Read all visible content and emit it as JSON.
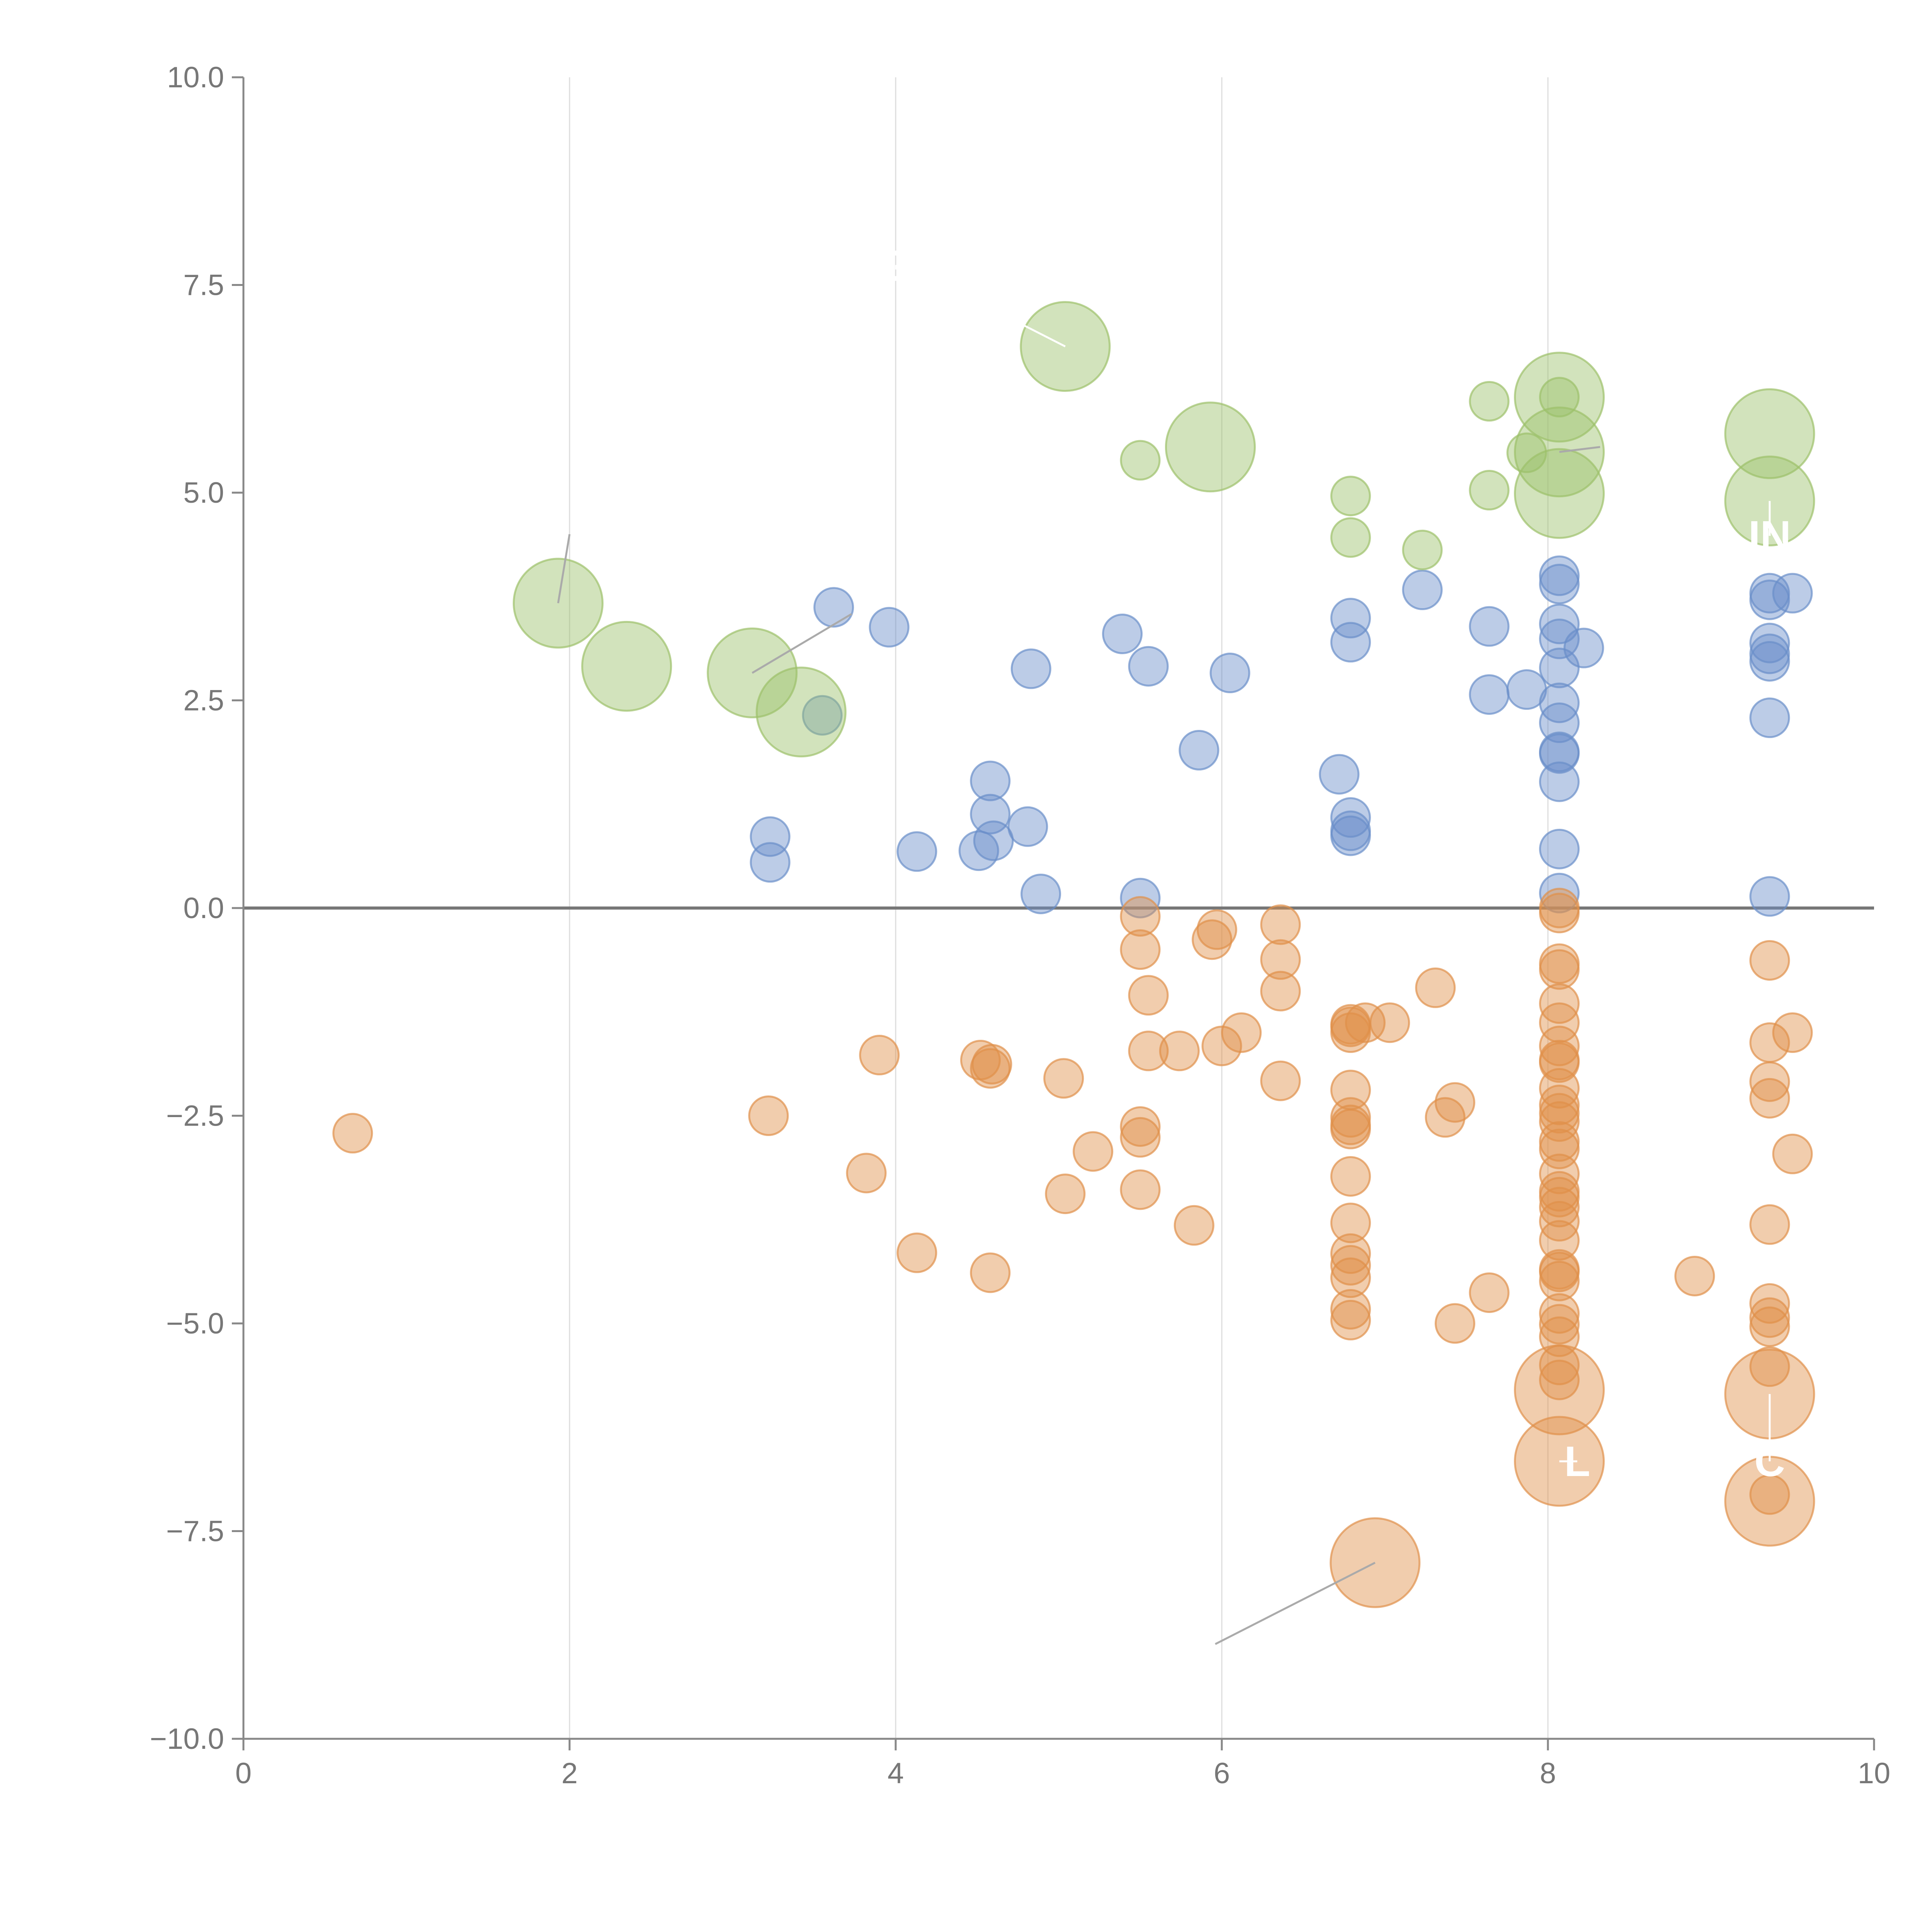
{
  "chart_data": {
    "type": "scatter",
    "title": "",
    "xlabel": "",
    "ylabel": "",
    "xlim": [
      0,
      10
    ],
    "ylim": [
      -10,
      10
    ],
    "x_ticks": [
      0,
      2,
      4,
      6,
      8,
      10
    ],
    "x_tick_labels": [
      "0",
      "2",
      "4",
      "6",
      "8",
      "10"
    ],
    "y_ticks": [
      10,
      7.5,
      5,
      2.5,
      0,
      -2.5,
      -5,
      -7.5,
      -10
    ],
    "y_tick_labels": [
      "10.0",
      "7.5",
      "5.0",
      "2.5",
      "0.0",
      "−2.5",
      "−5.0",
      "−7.5",
      "−10.0"
    ],
    "grid": "vertical",
    "reference_line_y": 0,
    "legend": "none",
    "colors": {
      "blue": "#6a8fc9",
      "orange": "#e0904a",
      "green": "#9cc06a",
      "axis": "#888888",
      "grid": "#dddddd",
      "zero_line": "#777777",
      "leader": "#aaaaaa"
    },
    "series": [
      {
        "name": "blue",
        "color": "#6a8fc9",
        "size": "small",
        "points": [
          [
            3.62,
            3.62
          ],
          [
            3.96,
            3.38
          ],
          [
            4.83,
            2.88
          ],
          [
            5.39,
            3.3
          ],
          [
            5.55,
            2.91
          ],
          [
            5.86,
            1.9
          ],
          [
            6.05,
            2.83
          ],
          [
            3.55,
            2.32
          ],
          [
            3.23,
            0.86
          ],
          [
            3.23,
            0.55
          ],
          [
            4.13,
            0.68
          ],
          [
            4.51,
            0.69
          ],
          [
            4.58,
            1.53
          ],
          [
            4.58,
            1.13
          ],
          [
            4.6,
            0.81
          ],
          [
            4.81,
            0.98
          ],
          [
            4.89,
            0.17
          ],
          [
            5.5,
            0.12
          ],
          [
            6.72,
            1.61
          ],
          [
            6.79,
            1.09
          ],
          [
            6.79,
            0.87
          ],
          [
            6.79,
            0.93
          ],
          [
            6.79,
            3.49
          ],
          [
            6.79,
            3.2
          ],
          [
            7.23,
            3.83
          ],
          [
            7.64,
            3.39
          ],
          [
            7.64,
            2.57
          ],
          [
            7.87,
            2.63
          ],
          [
            8.07,
            4.0
          ],
          [
            8.07,
            3.9
          ],
          [
            8.07,
            3.42
          ],
          [
            8.07,
            3.24
          ],
          [
            8.07,
            2.89
          ],
          [
            8.07,
            2.47
          ],
          [
            8.07,
            2.23
          ],
          [
            8.07,
            1.88
          ],
          [
            8.07,
            1.86
          ],
          [
            8.07,
            1.52
          ],
          [
            8.07,
            0.71
          ],
          [
            8.07,
            0.18
          ],
          [
            8.22,
            3.13
          ],
          [
            9.36,
            3.79
          ],
          [
            9.36,
            3.71
          ],
          [
            9.5,
            3.79
          ],
          [
            9.36,
            3.19
          ],
          [
            9.36,
            3.06
          ],
          [
            9.36,
            2.97
          ],
          [
            9.36,
            2.29
          ],
          [
            9.36,
            0.14
          ]
        ]
      },
      {
        "name": "orange",
        "color": "#e0904a",
        "size": "small",
        "points": [
          [
            0.67,
            -2.71
          ],
          [
            3.22,
            -2.5
          ],
          [
            3.82,
            -3.19
          ],
          [
            3.9,
            -1.77
          ],
          [
            4.13,
            -4.15
          ],
          [
            4.52,
            -1.83
          ],
          [
            4.58,
            -1.93
          ],
          [
            4.59,
            -1.88
          ],
          [
            4.58,
            -4.39
          ],
          [
            5.03,
            -2.05
          ],
          [
            5.04,
            -3.44
          ],
          [
            5.21,
            -2.93
          ],
          [
            5.5,
            -0.1
          ],
          [
            5.5,
            -0.5
          ],
          [
            5.55,
            -1.05
          ],
          [
            5.55,
            -1.72
          ],
          [
            5.5,
            -2.63
          ],
          [
            5.5,
            -2.76
          ],
          [
            5.5,
            -3.39
          ],
          [
            5.74,
            -1.72
          ],
          [
            5.83,
            -3.82
          ],
          [
            5.94,
            -0.38
          ],
          [
            5.97,
            -0.26
          ],
          [
            6.0,
            -1.66
          ],
          [
            6.12,
            -1.5
          ],
          [
            6.36,
            -0.2
          ],
          [
            6.36,
            -0.62
          ],
          [
            6.36,
            -1.0
          ],
          [
            6.36,
            -2.08
          ],
          [
            6.79,
            -1.4
          ],
          [
            6.79,
            -1.5
          ],
          [
            6.79,
            -1.43
          ],
          [
            6.88,
            -1.38
          ],
          [
            7.03,
            -1.38
          ],
          [
            6.79,
            -2.19
          ],
          [
            6.79,
            -2.52
          ],
          [
            6.79,
            -2.66
          ],
          [
            6.79,
            -2.61
          ],
          [
            6.79,
            -3.23
          ],
          [
            6.79,
            -3.79
          ],
          [
            6.79,
            -4.16
          ],
          [
            6.79,
            -4.3
          ],
          [
            6.79,
            -4.45
          ],
          [
            6.79,
            -4.83
          ],
          [
            6.79,
            -4.96
          ],
          [
            7.31,
            -0.96
          ],
          [
            7.37,
            -2.52
          ],
          [
            7.43,
            -2.34
          ],
          [
            7.43,
            -5.0
          ],
          [
            7.64,
            -4.63
          ],
          [
            8.07,
            -0.06
          ],
          [
            8.07,
            0.0
          ],
          [
            8.07,
            -0.67
          ],
          [
            8.07,
            -0.74
          ],
          [
            8.07,
            -1.15
          ],
          [
            8.07,
            -1.38
          ],
          [
            8.07,
            -1.66
          ],
          [
            8.07,
            -1.86
          ],
          [
            8.07,
            -1.83
          ],
          [
            8.07,
            -2.17
          ],
          [
            8.07,
            -2.37
          ],
          [
            8.07,
            -2.47
          ],
          [
            8.07,
            -2.57
          ],
          [
            8.07,
            -2.81
          ],
          [
            8.07,
            -2.9
          ],
          [
            8.07,
            -3.2
          ],
          [
            8.07,
            -3.41
          ],
          [
            8.07,
            -3.48
          ],
          [
            8.07,
            -3.6
          ],
          [
            8.07,
            -3.77
          ],
          [
            8.07,
            -4.0
          ],
          [
            8.07,
            -4.35
          ],
          [
            8.07,
            -4.38
          ],
          [
            8.07,
            -4.49
          ],
          [
            8.07,
            -4.88
          ],
          [
            8.07,
            -5.01
          ],
          [
            8.07,
            -5.16
          ],
          [
            8.07,
            -5.5
          ],
          [
            8.07,
            -5.68
          ],
          [
            8.9,
            -4.43
          ],
          [
            9.36,
            -0.63
          ],
          [
            9.36,
            -1.62
          ],
          [
            9.36,
            -2.09
          ],
          [
            9.36,
            -2.29
          ],
          [
            9.5,
            -1.5
          ],
          [
            9.5,
            -2.96
          ],
          [
            9.36,
            -3.81
          ],
          [
            9.36,
            -4.76
          ],
          [
            9.36,
            -4.93
          ],
          [
            9.36,
            -5.04
          ],
          [
            9.36,
            -5.52
          ],
          [
            9.36,
            -7.06
          ]
        ]
      },
      {
        "name": "green",
        "color": "#9cc06a",
        "size": "small",
        "points": [
          [
            5.5,
            5.39
          ],
          [
            6.79,
            4.96
          ],
          [
            6.79,
            4.46
          ],
          [
            7.23,
            4.31
          ],
          [
            7.64,
            6.1
          ],
          [
            7.64,
            5.03
          ],
          [
            7.87,
            5.48
          ],
          [
            8.07,
            6.15
          ]
        ]
      },
      {
        "name": "orange",
        "color": "#e0904a",
        "size": "large",
        "points": [
          [
            6.94,
            -7.88
          ],
          [
            8.07,
            -5.8
          ],
          [
            8.07,
            -6.66
          ],
          [
            9.36,
            -5.85
          ],
          [
            9.36,
            -7.14
          ]
        ]
      },
      {
        "name": "green",
        "color": "#9cc06a",
        "size": "large",
        "points": [
          [
            1.93,
            3.67
          ],
          [
            2.35,
            2.91
          ],
          [
            3.12,
            2.83
          ],
          [
            3.42,
            2.36
          ],
          [
            5.04,
            6.76
          ],
          [
            5.93,
            5.55
          ],
          [
            8.07,
            6.15
          ],
          [
            8.07,
            5.49
          ],
          [
            8.07,
            4.99
          ],
          [
            9.36,
            5.71
          ],
          [
            9.36,
            4.9
          ]
        ]
      }
    ],
    "annotations": [
      {
        "text": "GT",
        "x": 5.04,
        "y": 6.76,
        "label_x": 4.07,
        "label_y": 7.73
      },
      {
        "text": "L",
        "x": 8.07,
        "y": -6.66,
        "label_x": 8.18,
        "label_y": -6.66
      },
      {
        "text": "IN",
        "x": 9.36,
        "y": 4.9,
        "label_x": 9.36,
        "label_y": 4.48
      },
      {
        "text": "C",
        "x": 9.36,
        "y": -5.85,
        "label_x": 9.36,
        "label_y": -6.66
      },
      {
        "text": "",
        "x": 6.94,
        "y": -7.88,
        "label_x": 5.96,
        "label_y": -8.86
      },
      {
        "text": "",
        "x": 1.93,
        "y": 3.67,
        "label_x": 2.0,
        "label_y": 4.5
      },
      {
        "text": "",
        "x": 3.12,
        "y": 2.83,
        "label_x": 3.73,
        "label_y": 3.54
      },
      {
        "text": "",
        "x": 8.07,
        "y": 5.49,
        "label_x": 8.32,
        "label_y": 5.55
      }
    ]
  }
}
